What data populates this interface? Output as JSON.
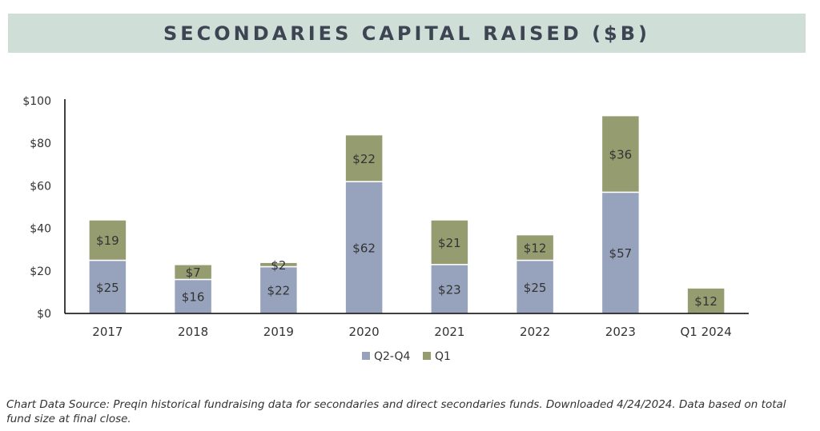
{
  "colors": {
    "banner_bg": "#cfdfd8",
    "title_text": "#3d4552",
    "q2_q4": "#97a3bd",
    "q1": "#959c70",
    "axis": "#000000",
    "tick_text": "#333333"
  },
  "chart_data": {
    "type": "bar",
    "stacked": true,
    "title": "SECONDARIES CAPITAL RAISED ($B)",
    "categories": [
      "2017",
      "2018",
      "2019",
      "2020",
      "2021",
      "2022",
      "2023",
      "Q1 2024"
    ],
    "series": [
      {
        "name": "Q2-Q4",
        "values": [
          25,
          16,
          22,
          62,
          23,
          25,
          57,
          0
        ],
        "labels": [
          "$25",
          "$16",
          "$22",
          "$62",
          "$23",
          "$25",
          "$57",
          ""
        ],
        "color": "#97a3bd"
      },
      {
        "name": "Q1",
        "values": [
          19,
          7,
          2,
          22,
          21,
          12,
          36,
          12
        ],
        "labels": [
          "$19",
          "$7",
          "$2",
          "$22",
          "$21",
          "$12",
          "$36",
          "$12"
        ],
        "color": "#959c70"
      }
    ],
    "y_ticks": [
      "$0",
      "$20",
      "$40",
      "$60",
      "$80",
      "$100"
    ],
    "y_tick_values": [
      0,
      20,
      40,
      60,
      80,
      100
    ],
    "ylim": [
      0,
      100
    ],
    "grid": false,
    "legend_position": "bottom",
    "xlabel": "",
    "ylabel": ""
  },
  "source_note": "Chart Data Source: Preqin historical fundraising data for secondaries and direct secondaries funds. Downloaded 4/24/2024. Data based on total fund size at final close."
}
